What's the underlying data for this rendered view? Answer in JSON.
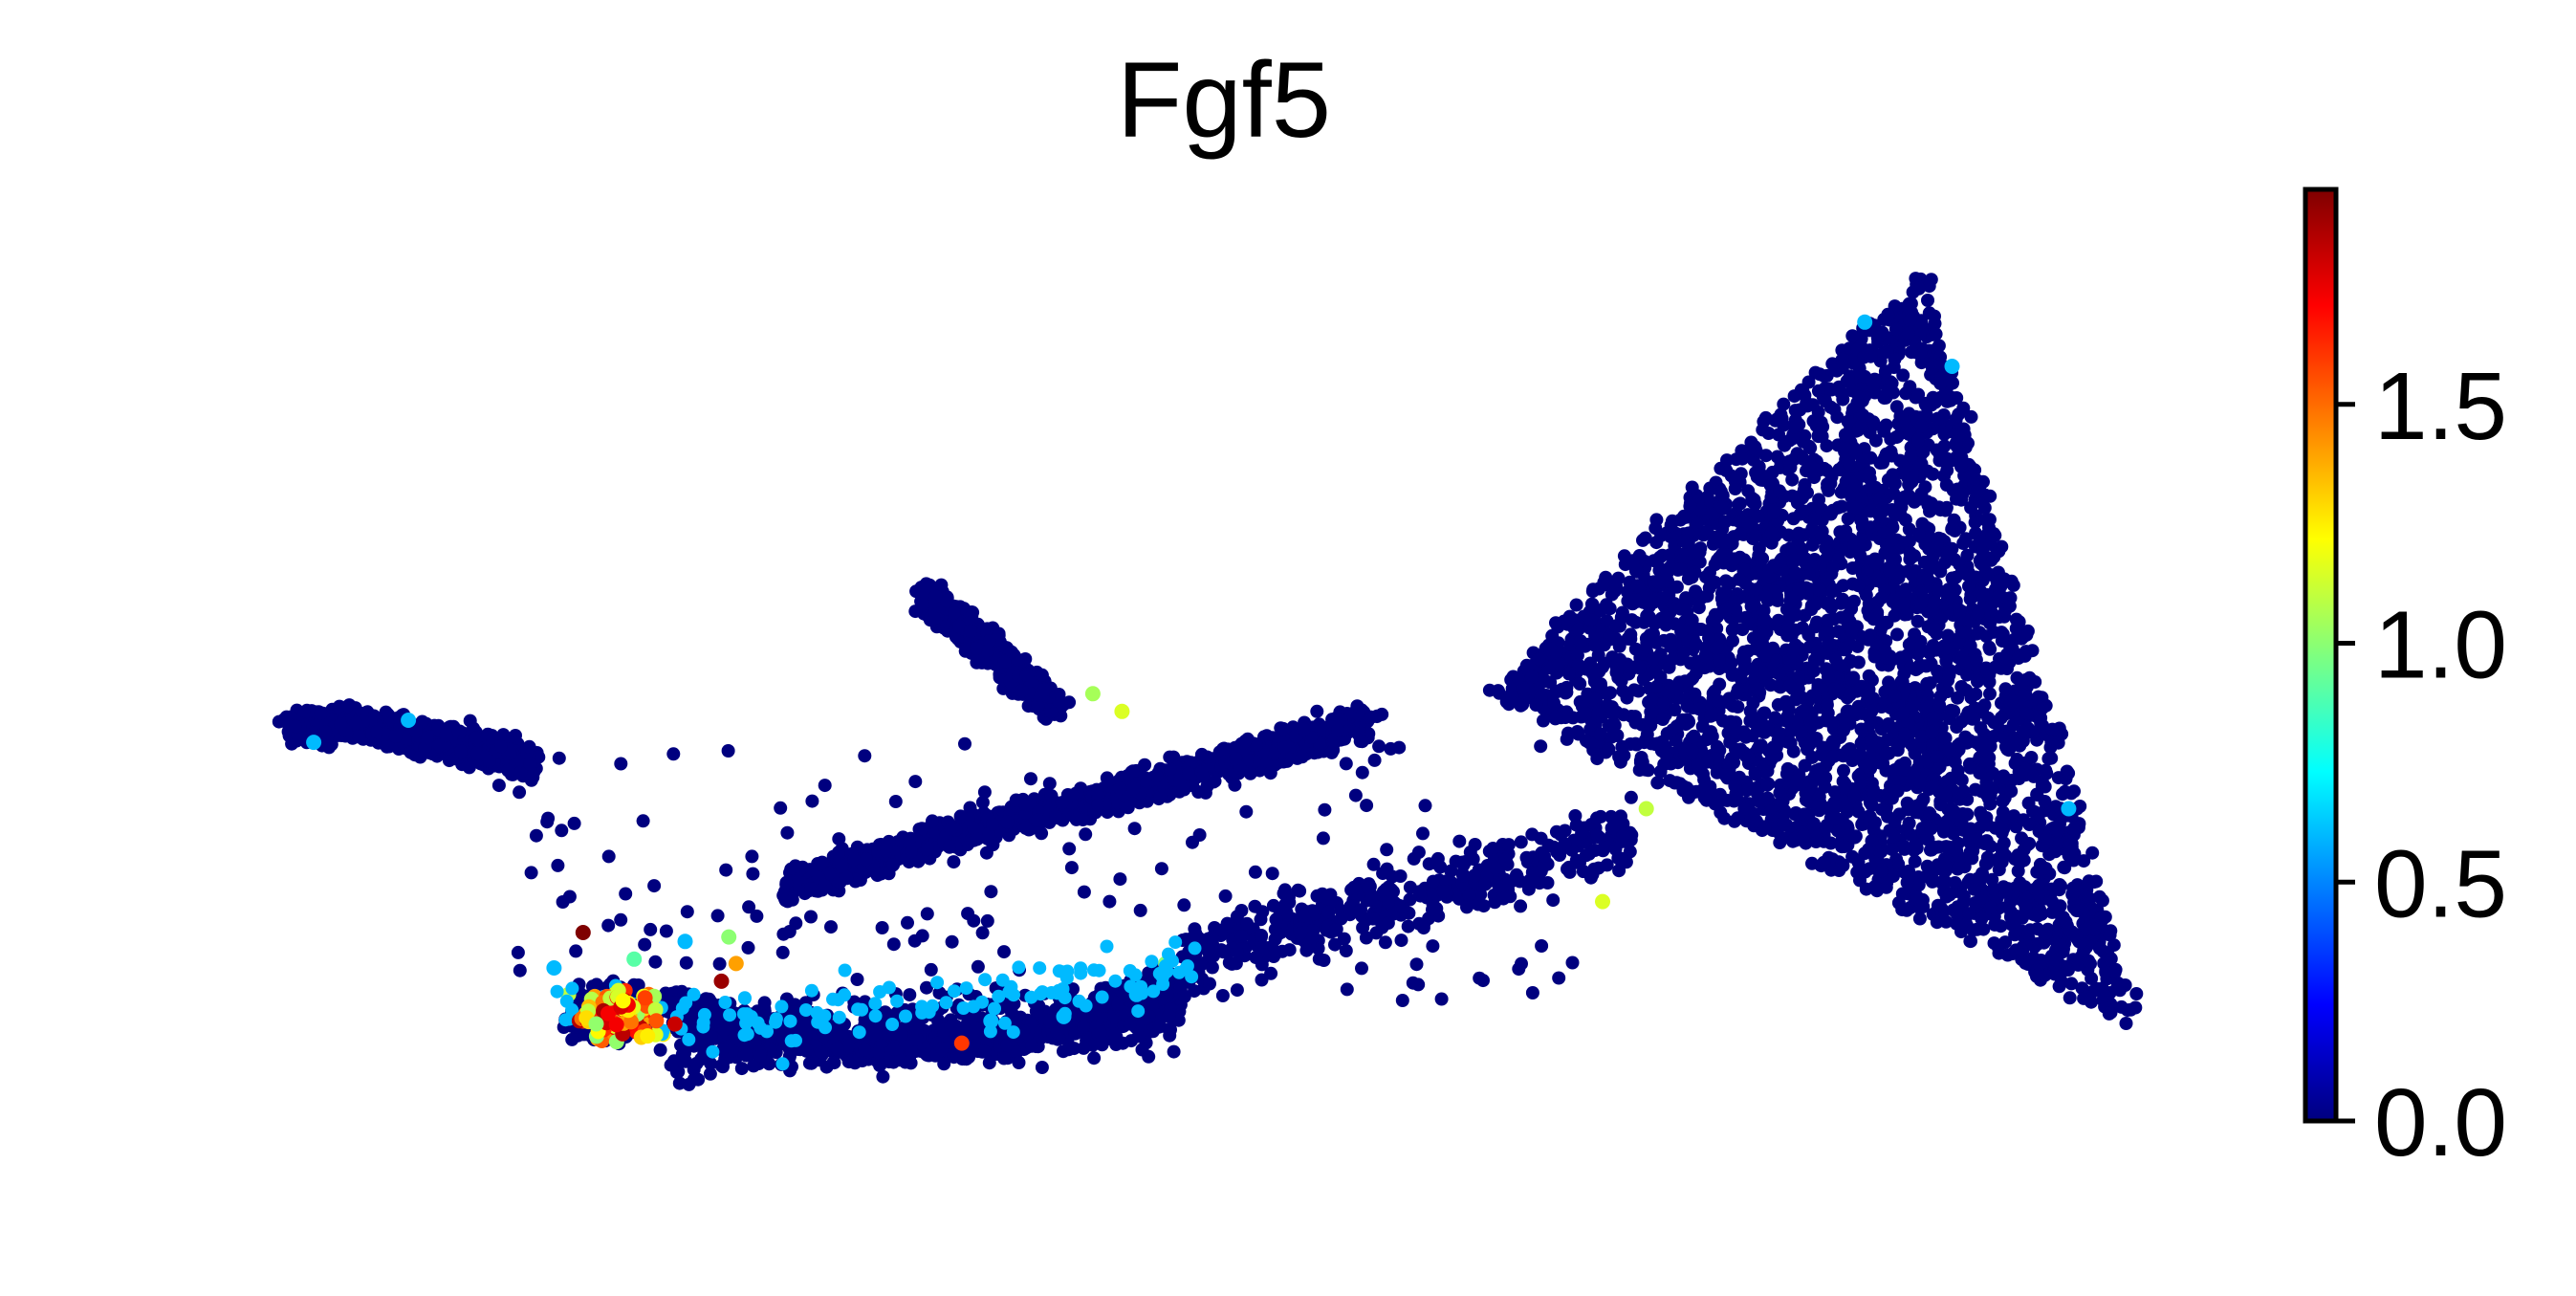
{
  "chart_data": {
    "type": "scatter",
    "title": "Fgf5",
    "xlabel": "",
    "ylabel": "",
    "axes_visible": false,
    "grid": false,
    "point_color": "#00007f",
    "colormap": "jet",
    "colorbar": {
      "label": "",
      "range": [
        0.0,
        1.95
      ],
      "ticks": [
        0.0,
        0.5,
        1.0,
        1.5
      ],
      "tick_labels": [
        "0.0",
        "0.5",
        "1.0",
        "1.5"
      ],
      "stops": [
        "#00007f",
        "#0000ff",
        "#007fff",
        "#00ffff",
        "#7fff7f",
        "#ffff00",
        "#ff7f00",
        "#ff0000",
        "#7f0000"
      ]
    },
    "note_density": "embedding of many cells; most cells at 0.0, elevated values concentrated in lower-left cluster",
    "regions": [
      {
        "name": "left arm",
        "points": [
          [
            -4.9,
            2.8
          ],
          [
            -4.5,
            2.85
          ],
          [
            -4.0,
            2.7
          ],
          [
            -3.6,
            2.6
          ],
          [
            -3.25,
            2.4
          ]
        ]
      },
      {
        "name": "lower-left cluster",
        "center": [
          -2.7,
          -0.4
        ],
        "spread": [
          0.35,
          0.35
        ]
      },
      {
        "name": "bottom band",
        "points": [
          [
            -2.3,
            -0.3
          ],
          [
            -1.6,
            -0.65
          ],
          [
            -0.8,
            -0.8
          ],
          [
            0.0,
            -0.7
          ],
          [
            0.7,
            -0.35
          ],
          [
            1.2,
            -0.1
          ]
        ]
      },
      {
        "name": "upper filament",
        "points": [
          [
            -0.55,
            4.3
          ],
          [
            -0.25,
            3.9
          ],
          [
            0.05,
            3.45
          ],
          [
            0.35,
            3.05
          ]
        ]
      },
      {
        "name": "middle band",
        "points": [
          [
            -1.5,
            1.0
          ],
          [
            -0.5,
            1.55
          ],
          [
            0.6,
            2.0
          ],
          [
            1.6,
            2.45
          ],
          [
            2.5,
            2.9
          ]
        ]
      },
      {
        "name": "right triangle",
        "apex": [
          6.3,
          8.0
        ],
        "base_left": [
          3.3,
          3.2
        ],
        "base_right": [
          7.8,
          -0.6
        ]
      }
    ],
    "highlight_points": [
      {
        "x": -2.6,
        "y": -0.35,
        "value": 1.9
      },
      {
        "x": -2.5,
        "y": -0.55,
        "value": 1.8
      },
      {
        "x": -2.75,
        "y": -0.3,
        "value": 1.7
      },
      {
        "x": -2.9,
        "y": -0.5,
        "value": 1.6
      },
      {
        "x": -2.45,
        "y": -0.2,
        "value": 1.5
      },
      {
        "x": -2.8,
        "y": -0.7,
        "value": 1.4
      },
      {
        "x": -2.35,
        "y": -0.65,
        "value": 1.25
      },
      {
        "x": -3.0,
        "y": -0.2,
        "value": 1.1
      },
      {
        "x": -2.55,
        "y": 0.2,
        "value": 0.9
      },
      {
        "x": -3.1,
        "y": 0.1,
        "value": 0.6
      },
      {
        "x": -2.2,
        "y": 0.4,
        "value": 0.6
      },
      {
        "x": -2.9,
        "y": 0.5,
        "value": 1.95
      },
      {
        "x": -1.95,
        "y": -0.05,
        "value": 1.9
      },
      {
        "x": -1.85,
        "y": 0.15,
        "value": 1.4
      },
      {
        "x": -1.9,
        "y": 0.45,
        "value": 1.0
      },
      {
        "x": -0.3,
        "y": -0.75,
        "value": 1.6
      },
      {
        "x": -0.1,
        "y": -0.5,
        "value": 0.6
      },
      {
        "x": 0.4,
        "y": -0.45,
        "value": 0.6
      },
      {
        "x": 0.9,
        "y": -0.2,
        "value": 0.6
      },
      {
        "x": 1.1,
        "y": 0.15,
        "value": 1.0
      },
      {
        "x": 0.6,
        "y": 3.2,
        "value": 1.05
      },
      {
        "x": 0.8,
        "y": 3.0,
        "value": 1.15
      },
      {
        "x": 4.4,
        "y": 1.9,
        "value": 1.1
      },
      {
        "x": 4.1,
        "y": 0.85,
        "value": 1.15
      },
      {
        "x": 5.9,
        "y": 7.4,
        "value": 0.6
      },
      {
        "x": 6.5,
        "y": 6.9,
        "value": 0.6
      },
      {
        "x": 7.3,
        "y": 1.9,
        "value": 0.6
      },
      {
        "x": -4.75,
        "y": 2.65,
        "value": 0.6
      },
      {
        "x": -4.1,
        "y": 2.9,
        "value": 0.6
      }
    ]
  }
}
